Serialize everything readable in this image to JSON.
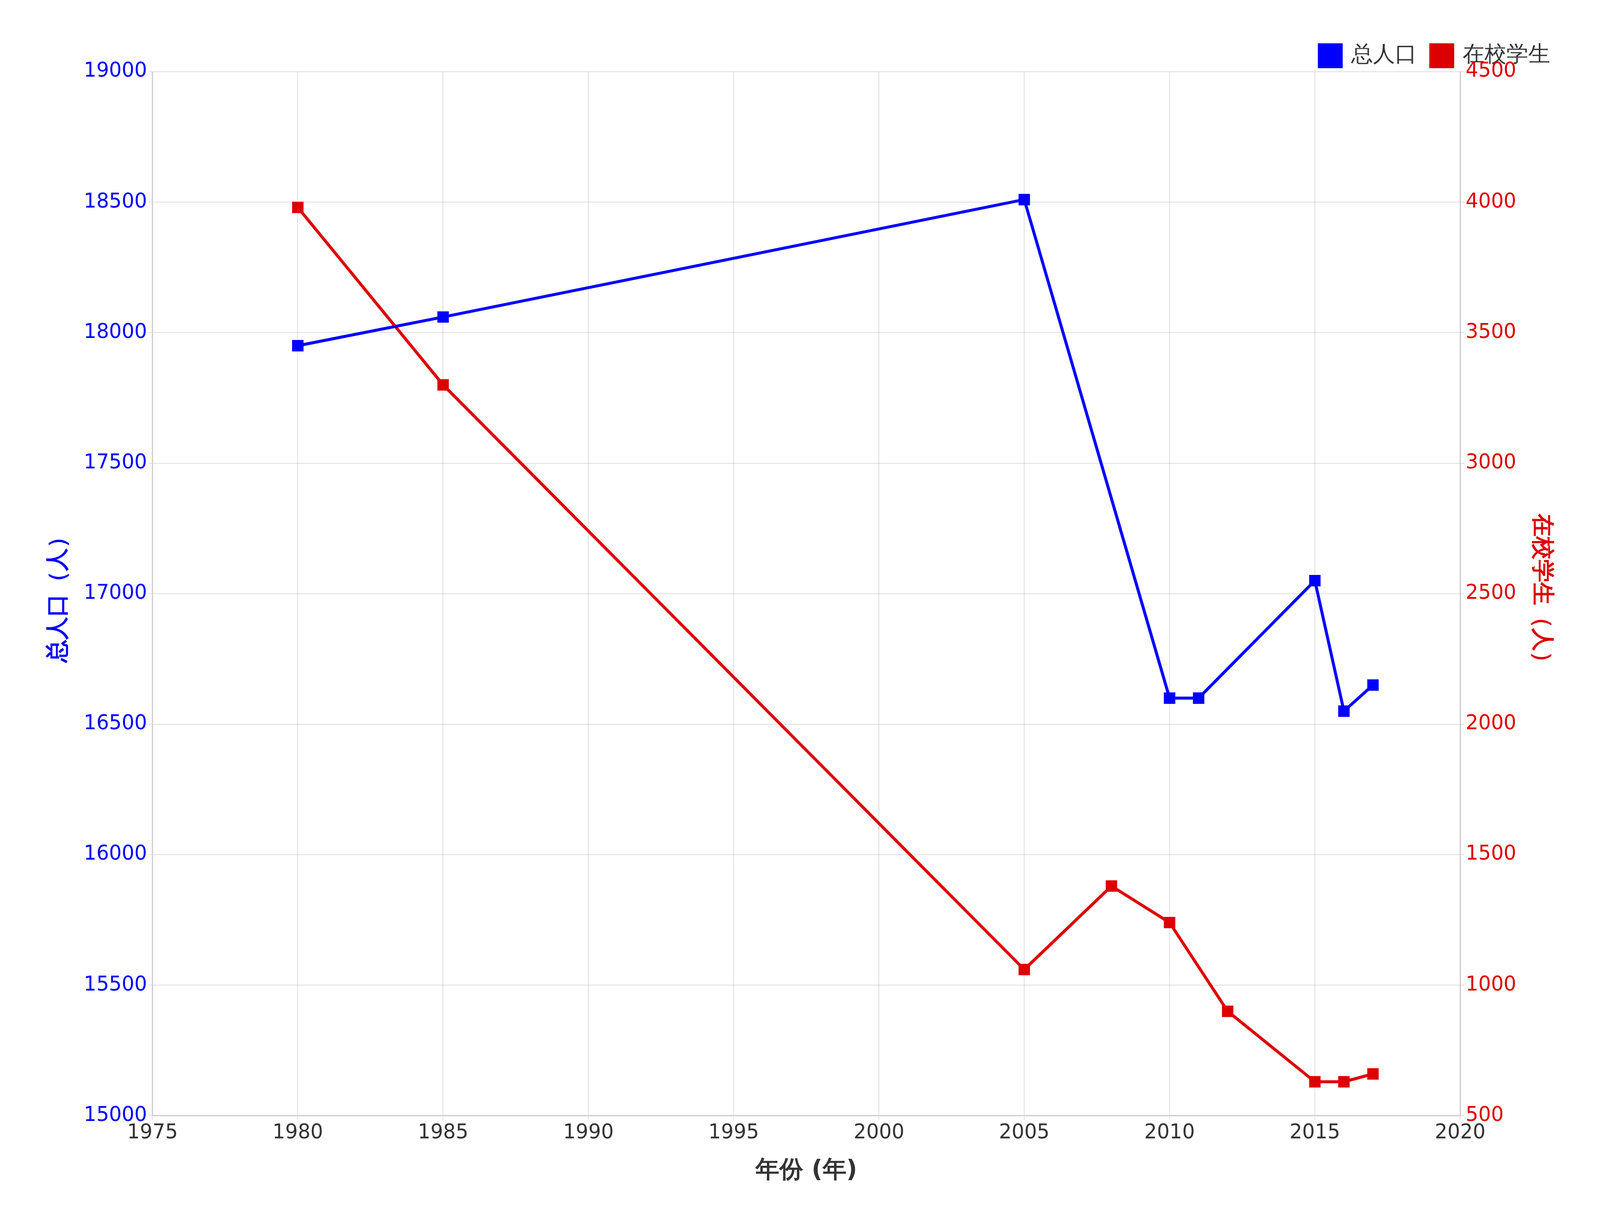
{
  "chart_data": {
    "type": "line",
    "xlabel": "年份 (年)",
    "ylabel": "总人口（人）",
    "y2label": "在校学生（人）",
    "series": [
      {
        "name": "总人口",
        "color": "#0000FF",
        "marker": "square",
        "line_style": "solid",
        "x": [
          1980,
          1985,
          2005,
          2010,
          2011,
          2015,
          2016,
          2017
        ],
        "values": [
          17950,
          18060,
          18510,
          16600,
          16600,
          17050,
          16550,
          16650
        ]
      },
      {
        "name": "在校学生",
        "color": "#DD0000",
        "marker": "square",
        "line_style": "solid",
        "axis": "y2",
        "x": [
          1980,
          1985,
          2005,
          2008,
          2010,
          2012,
          2015,
          2016,
          2017
        ],
        "values": [
          3980,
          3300,
          1060,
          1380,
          1240,
          900,
          630,
          630,
          660
        ]
      }
    ],
    "xlim": [
      1975,
      2020
    ],
    "xticks": [
      1975,
      1980,
      1985,
      1990,
      1995,
      2000,
      2005,
      2010,
      2015,
      2020
    ],
    "ylim": [
      15000,
      19000
    ],
    "yticks": [
      15000,
      15500,
      16000,
      16500,
      17000,
      17500,
      18000,
      18500,
      19000
    ],
    "y2lim": [
      500,
      4500
    ],
    "y2ticks": [
      500,
      1000,
      1500,
      2000,
      2500,
      3000,
      3500,
      4000,
      4500
    ],
    "grid": true,
    "legend": "upper right"
  }
}
